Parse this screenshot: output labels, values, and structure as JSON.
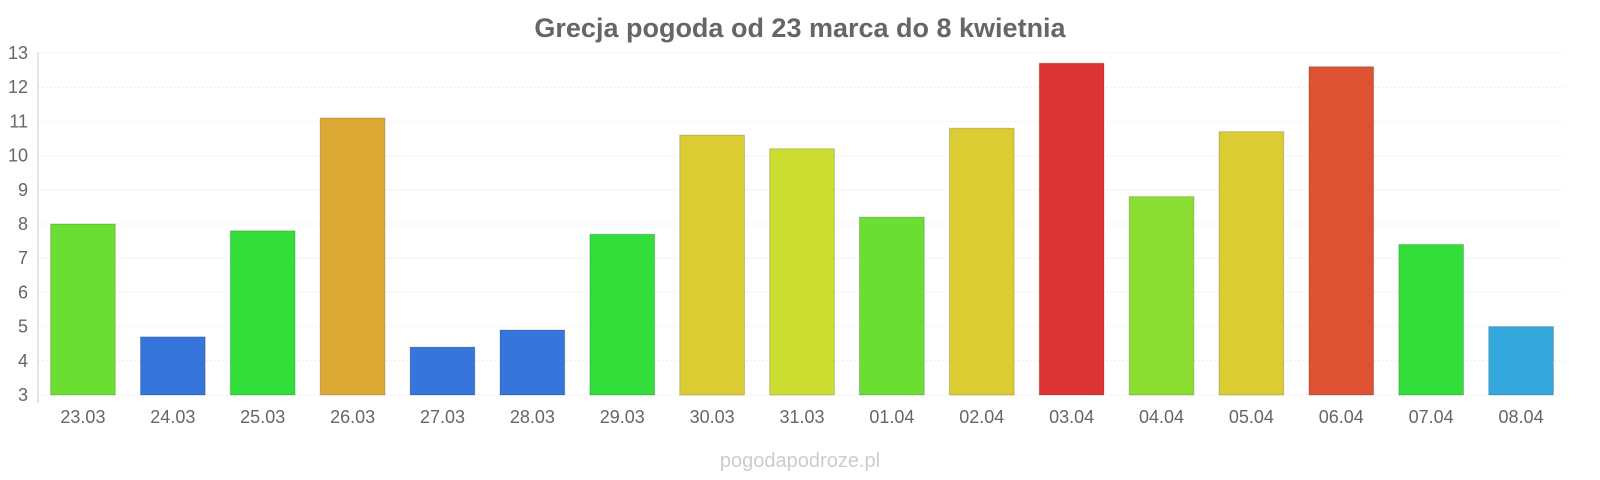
{
  "chart_data": {
    "type": "bar",
    "title": "Grecja pogoda od 23 marca do 8 kwietnia",
    "xlabel": "",
    "ylabel": "",
    "ylim": [
      3,
      13
    ],
    "yticks": [
      3,
      4,
      5,
      6,
      7,
      8,
      9,
      10,
      11,
      12,
      13
    ],
    "grid": true,
    "legend": "none",
    "categories": [
      "23.03",
      "24.03",
      "25.03",
      "26.03",
      "27.03",
      "28.03",
      "29.03",
      "30.03",
      "31.03",
      "01.04",
      "02.04",
      "03.04",
      "04.04",
      "05.04",
      "06.04",
      "07.04",
      "08.04"
    ],
    "values": [
      8.0,
      4.7,
      7.8,
      11.1,
      4.4,
      4.9,
      7.7,
      10.6,
      10.2,
      8.2,
      10.8,
      12.7,
      8.8,
      10.7,
      12.6,
      7.4,
      5.0
    ],
    "colors": [
      "#6ade33",
      "#3575dc",
      "#33dd3a",
      "#dba934",
      "#3575dc",
      "#3575dc",
      "#33dd3a",
      "#dccc34",
      "#ccdd32",
      "#6ade33",
      "#dccc34",
      "#dc3434",
      "#8bdd32",
      "#dccc34",
      "#dc5233",
      "#33dd3a",
      "#34a8dc"
    ]
  },
  "watermark": "pogodapodroze.pl"
}
